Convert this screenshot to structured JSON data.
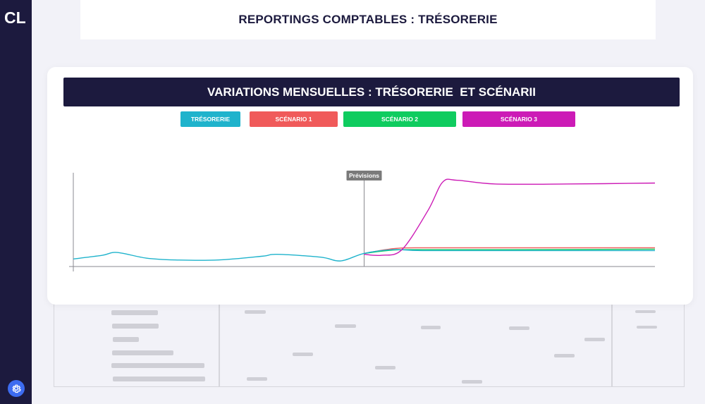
{
  "app": {
    "logo": "CL"
  },
  "header": {
    "title": "REPORTINGS COMPTABLES : TRÉSORERIE"
  },
  "chart_panel": {
    "title": "VARIATIONS MENSUELLES : TRÉSORERIE  ET SCÉNARII",
    "legend": [
      {
        "label": "TRÉSORERIE",
        "color": "#1fb3cc"
      },
      {
        "label": "SCÉNARIO 1",
        "color": "#f05a5a"
      },
      {
        "label": "SCÉNARIO 2",
        "color": "#0fcc5f"
      },
      {
        "label": "SCÉNARIO 3",
        "color": "#cc1bb6"
      }
    ],
    "forecast_marker": "Prévisions"
  },
  "chart_data": {
    "type": "line",
    "title": "VARIATIONS MENSUELLES : TRÉSORERIE  ET SCÉNARII",
    "xlabel": "",
    "ylabel": "",
    "x": [
      0,
      1,
      2,
      3,
      4,
      5,
      6,
      7,
      8,
      9,
      10,
      11,
      12,
      13,
      14,
      15,
      16,
      17,
      18,
      19,
      20
    ],
    "xlim": [
      0,
      20
    ],
    "ylim": [
      0,
      100
    ],
    "forecast_start_x": 10,
    "grid": false,
    "series": [
      {
        "name": "TRÉSORERIE",
        "color": "#1fb3cc",
        "points": [
          [
            0,
            8
          ],
          [
            1,
            12
          ],
          [
            1.5,
            15
          ],
          [
            2.5,
            9
          ],
          [
            3.5,
            7
          ],
          [
            5,
            7
          ],
          [
            6.5,
            11
          ],
          [
            7,
            13
          ],
          [
            8.5,
            10
          ],
          [
            9.2,
            6
          ],
          [
            10,
            14
          ],
          [
            11,
            18
          ],
          [
            12,
            17
          ],
          [
            15,
            17
          ],
          [
            20,
            17
          ]
        ]
      },
      {
        "name": "SCÉNARIO 1",
        "color": "#f05a5a",
        "points": [
          [
            10,
            14
          ],
          [
            11,
            19
          ],
          [
            12,
            20
          ],
          [
            15,
            20
          ],
          [
            20,
            20
          ]
        ]
      },
      {
        "name": "SCÉNARIO 2",
        "color": "#0fcc5f",
        "points": [
          [
            10,
            14
          ],
          [
            11,
            17.5
          ],
          [
            12,
            18
          ],
          [
            15,
            18
          ],
          [
            20,
            18.5
          ]
        ]
      },
      {
        "name": "SCÉNARIO 3",
        "color": "#cc1bb6",
        "points": [
          [
            10,
            13
          ],
          [
            10.6,
            12
          ],
          [
            11.3,
            18
          ],
          [
            12.2,
            60
          ],
          [
            12.7,
            90
          ],
          [
            13.2,
            92
          ],
          [
            14.5,
            88
          ],
          [
            17,
            88
          ],
          [
            20,
            89
          ]
        ]
      }
    ]
  }
}
